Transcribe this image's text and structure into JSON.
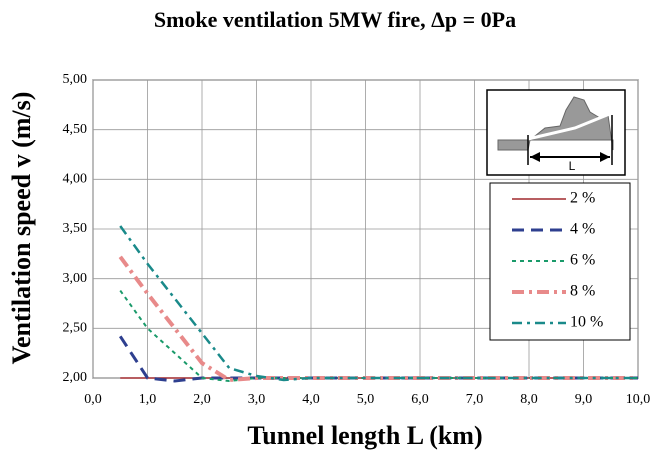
{
  "chart_data": {
    "type": "line",
    "title": "Smoke ventilation 5MW fire,   Δp = 0Pa",
    "x_label": "Tunnel length L (km)",
    "y_label": "Ventilation speed v  (m/s)",
    "inset_label": "L",
    "x": [
      0.5,
      1.0,
      1.5,
      2.0,
      2.5,
      3.0,
      3.5,
      4.0,
      5.0,
      6.0,
      7.0,
      8.0,
      9.0,
      10.0
    ],
    "series": [
      {
        "name": "2 %",
        "color": "#a0282d",
        "dash": "",
        "width": 1.5,
        "values": [
          2.0,
          2.0,
          2.0,
          2.0,
          2.0,
          2.0,
          2.0,
          2.0,
          2.0,
          2.0,
          2.0,
          2.0,
          2.0,
          2.0
        ]
      },
      {
        "name": "4 %",
        "color": "#2e3f8f",
        "dash": "12,7",
        "width": 3,
        "values": [
          2.42,
          2.0,
          1.97,
          2.0,
          2.0,
          2.0,
          2.0,
          2.0,
          2.0,
          2.0,
          2.0,
          2.0,
          2.0,
          2.0
        ]
      },
      {
        "name": "6 %",
        "color": "#1a9a6a",
        "dash": "4,4",
        "width": 2,
        "values": [
          2.88,
          2.5,
          2.25,
          2.0,
          1.97,
          2.0,
          2.0,
          2.0,
          2.0,
          2.0,
          2.0,
          2.0,
          2.0,
          2.0
        ]
      },
      {
        "name": "8 %",
        "color": "#e88a8a",
        "dash": "12,5,3,5",
        "width": 4,
        "values": [
          3.22,
          2.85,
          2.5,
          2.15,
          1.98,
          2.0,
          2.0,
          2.0,
          2.0,
          2.0,
          2.0,
          2.0,
          2.0,
          2.0
        ]
      },
      {
        "name": "10 %",
        "color": "#1a8a8a",
        "dash": "10,5,3,5",
        "width": 2.5,
        "values": [
          3.53,
          3.15,
          2.8,
          2.45,
          2.1,
          2.02,
          1.98,
          2.0,
          2.0,
          2.0,
          2.0,
          2.0,
          2.0,
          2.0
        ]
      }
    ],
    "xlim": [
      0,
      10
    ],
    "xticks": [
      {
        "value": 0,
        "label": "0,0"
      },
      {
        "value": 1,
        "label": "1,0"
      },
      {
        "value": 2,
        "label": "2,0"
      },
      {
        "value": 3,
        "label": "3,0"
      },
      {
        "value": 4,
        "label": "4,0"
      },
      {
        "value": 5,
        "label": "5,0"
      },
      {
        "value": 6,
        "label": "6,0"
      },
      {
        "value": 7,
        "label": "7,0"
      },
      {
        "value": 8,
        "label": "8,0"
      },
      {
        "value": 9,
        "label": "9,0"
      },
      {
        "value": 10,
        "label": "10,0"
      }
    ],
    "ylim": [
      2,
      5
    ],
    "yticks": [
      {
        "value": 2,
        "label": "2,00"
      },
      {
        "value": 2.5,
        "label": "2,50"
      },
      {
        "value": 3,
        "label": "3,00"
      },
      {
        "value": 3.5,
        "label": "3,50"
      },
      {
        "value": 4,
        "label": "4,00"
      },
      {
        "value": 4.5,
        "label": "4,50"
      },
      {
        "value": 5,
        "label": "5,00"
      }
    ],
    "grid": true
  }
}
